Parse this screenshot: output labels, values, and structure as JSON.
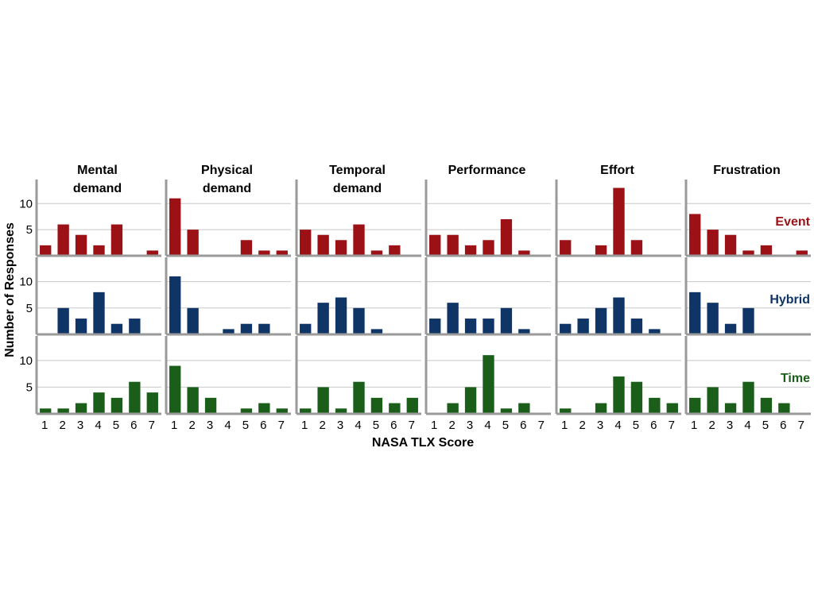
{
  "chart_data": {
    "type": "bar",
    "layout": "faceted-grid",
    "xlabel": "NASA TLX Score",
    "ylabel": "Number of Responses",
    "x_ticks": [
      "1",
      "2",
      "3",
      "4",
      "5",
      "6",
      "7"
    ],
    "y_ticks": [
      "5",
      "10"
    ],
    "ylim": [
      0,
      14
    ],
    "xlim": [
      0.5,
      7.5
    ],
    "grid": "horizontal",
    "columns": [
      {
        "id": "mental",
        "title_lines": [
          "Mental",
          "demand"
        ]
      },
      {
        "id": "physical",
        "title_lines": [
          "Physical",
          "demand"
        ]
      },
      {
        "id": "temporal",
        "title_lines": [
          "Temporal",
          "demand"
        ]
      },
      {
        "id": "performance",
        "title_lines": [
          "Performance"
        ]
      },
      {
        "id": "effort",
        "title_lines": [
          "Effort"
        ]
      },
      {
        "id": "frustration",
        "title_lines": [
          "Frustration"
        ]
      }
    ],
    "rows": [
      {
        "name": "Event",
        "color": "#9b1115",
        "values": [
          [
            2,
            6,
            4,
            2,
            6,
            0,
            1
          ],
          [
            11,
            5,
            0,
            0,
            3,
            1,
            1
          ],
          [
            5,
            4,
            3,
            6,
            1,
            2,
            0
          ],
          [
            4,
            4,
            2,
            3,
            7,
            1,
            0
          ],
          [
            3,
            0,
            2,
            13,
            3,
            0,
            0
          ],
          [
            8,
            5,
            4,
            1,
            2,
            0,
            1
          ]
        ]
      },
      {
        "name": "Hybrid",
        "color": "#0f3566",
        "values": [
          [
            0,
            5,
            3,
            8,
            2,
            3,
            0
          ],
          [
            11,
            5,
            0,
            1,
            2,
            2,
            0
          ],
          [
            2,
            6,
            7,
            5,
            1,
            0,
            0
          ],
          [
            3,
            6,
            3,
            3,
            5,
            1,
            0
          ],
          [
            2,
            3,
            5,
            7,
            3,
            1,
            0
          ],
          [
            8,
            6,
            2,
            5,
            0,
            0,
            0
          ]
        ]
      },
      {
        "name": "Time",
        "color": "#1a5e1a",
        "values": [
          [
            1,
            1,
            2,
            4,
            3,
            6,
            4
          ],
          [
            9,
            5,
            3,
            0,
            1,
            2,
            1
          ],
          [
            1,
            5,
            1,
            6,
            3,
            2,
            3
          ],
          [
            0,
            2,
            5,
            11,
            1,
            2,
            0
          ],
          [
            1,
            0,
            2,
            7,
            6,
            3,
            2
          ],
          [
            3,
            5,
            2,
            6,
            3,
            2,
            0
          ]
        ]
      }
    ],
    "colors": {
      "grid": "#c8c8c8",
      "panel_border": "#9a9a9a"
    }
  }
}
